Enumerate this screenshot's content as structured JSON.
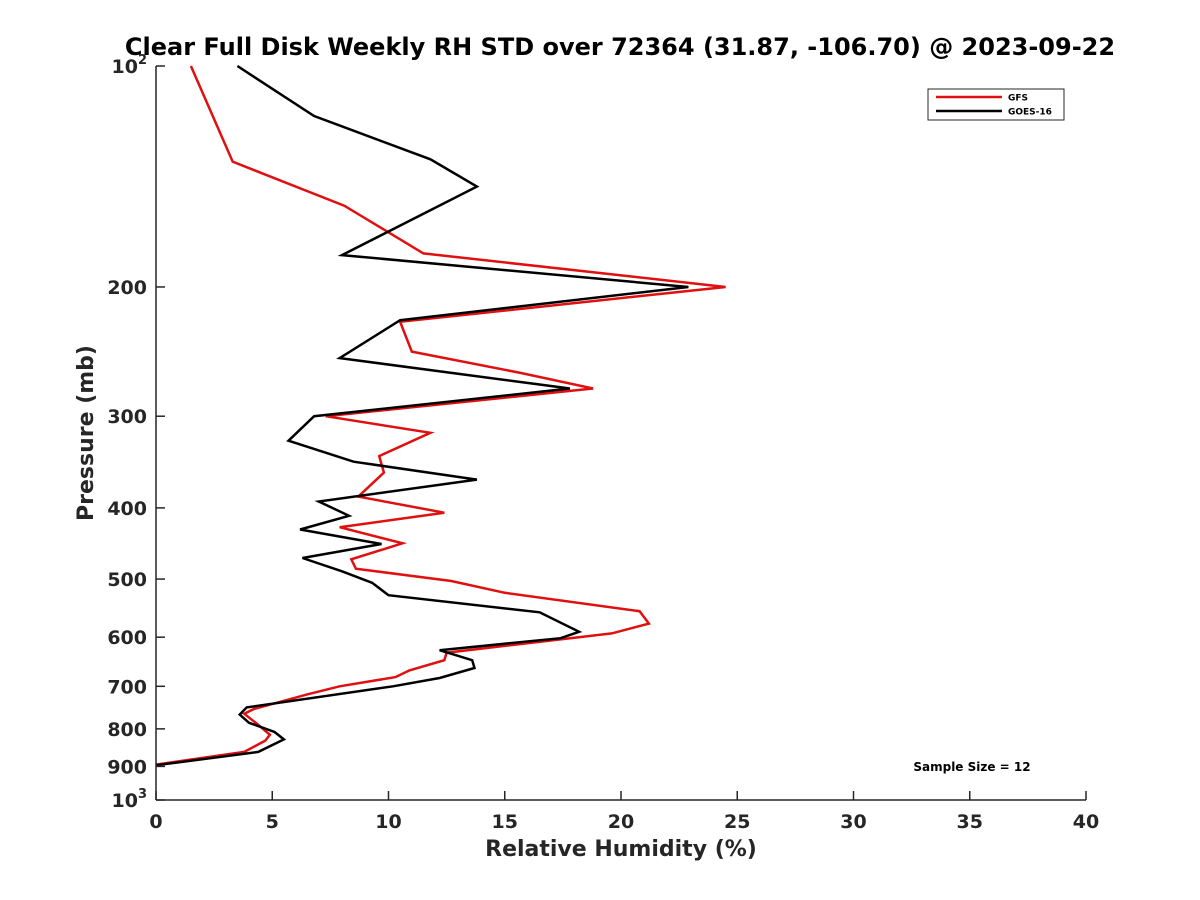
{
  "chart_data": {
    "type": "line",
    "title": "Clear Full Disk Weekly RH STD over 72364 (31.87, -106.70) @ 2023-09-22",
    "xlabel": "Relative Humidity (%)",
    "ylabel": "Pressure (mb)",
    "xlim": [
      0,
      40
    ],
    "ylim": [
      100,
      1000
    ],
    "y_scale": "log",
    "y_reversed": true,
    "x_ticks": [
      0,
      5,
      10,
      15,
      20,
      25,
      30,
      35,
      40
    ],
    "x_tick_labels": [
      "0",
      "5",
      "10",
      "15",
      "20",
      "25",
      "30",
      "35",
      "40"
    ],
    "y_ticks": [
      100,
      200,
      300,
      400,
      500,
      600,
      700,
      800,
      900,
      1000
    ],
    "y_tick_labels": [
      {
        "base": "10",
        "exp": "2"
      },
      {
        "base": "200",
        "exp": ""
      },
      {
        "base": "300",
        "exp": ""
      },
      {
        "base": "400",
        "exp": ""
      },
      {
        "base": "500",
        "exp": ""
      },
      {
        "base": "600",
        "exp": ""
      },
      {
        "base": "700",
        "exp": ""
      },
      {
        "base": "800",
        "exp": ""
      },
      {
        "base": "900",
        "exp": ""
      },
      {
        "base": "10",
        "exp": "3"
      }
    ],
    "grid": false,
    "legend_position": "top-right",
    "annotation": "Sample Size = 12",
    "series": [
      {
        "name": "GFS",
        "color": "#e01010",
        "points": [
          [
            1.5,
            100
          ],
          [
            3.3,
            135
          ],
          [
            8.1,
            155
          ],
          [
            11.5,
            180
          ],
          [
            24.5,
            200
          ],
          [
            10.5,
            223
          ],
          [
            11.0,
            245
          ],
          [
            15.7,
            262
          ],
          [
            18.8,
            275
          ],
          [
            7.3,
            300
          ],
          [
            11.8,
            316
          ],
          [
            9.6,
            340
          ],
          [
            9.8,
            358
          ],
          [
            8.7,
            386
          ],
          [
            12.4,
            406
          ],
          [
            7.9,
            425
          ],
          [
            10.6,
            447
          ],
          [
            8.4,
            470
          ],
          [
            8.6,
            484
          ],
          [
            12.7,
            503
          ],
          [
            15.0,
            522
          ],
          [
            20.8,
            553
          ],
          [
            21.2,
            575
          ],
          [
            19.6,
            593
          ],
          [
            12.5,
            630
          ],
          [
            12.4,
            645
          ],
          [
            10.9,
            666
          ],
          [
            10.3,
            680
          ],
          [
            7.9,
            700
          ],
          [
            6.5,
            718
          ],
          [
            4.2,
            752
          ],
          [
            3.8,
            763
          ],
          [
            4.4,
            790
          ],
          [
            4.9,
            815
          ],
          [
            4.7,
            830
          ],
          [
            3.8,
            860
          ],
          [
            0,
            895
          ]
        ]
      },
      {
        "name": "GOES-16",
        "color": "#000000",
        "points": [
          [
            3.5,
            100
          ],
          [
            6.8,
            117
          ],
          [
            11.8,
            134
          ],
          [
            13.8,
            146
          ],
          [
            8.0,
            181
          ],
          [
            22.9,
            200
          ],
          [
            10.5,
            222
          ],
          [
            7.9,
            250
          ],
          [
            17.8,
            275
          ],
          [
            6.8,
            300
          ],
          [
            5.7,
            324
          ],
          [
            8.5,
            346
          ],
          [
            13.8,
            366
          ],
          [
            7.0,
            392
          ],
          [
            8.3,
            410
          ],
          [
            6.2,
            428
          ],
          [
            9.7,
            448
          ],
          [
            6.3,
            468
          ],
          [
            8.0,
            488
          ],
          [
            9.3,
            506
          ],
          [
            10.0,
            526
          ],
          [
            16.5,
            555
          ],
          [
            18.2,
            590
          ],
          [
            17.4,
            602
          ],
          [
            12.2,
            625
          ],
          [
            13.6,
            645
          ],
          [
            13.7,
            661
          ],
          [
            12.2,
            682
          ],
          [
            10.2,
            700
          ],
          [
            3.9,
            748
          ],
          [
            3.6,
            765
          ],
          [
            4.0,
            785
          ],
          [
            5.1,
            808
          ],
          [
            5.5,
            827
          ],
          [
            4.4,
            860
          ],
          [
            0,
            897
          ]
        ]
      }
    ]
  }
}
